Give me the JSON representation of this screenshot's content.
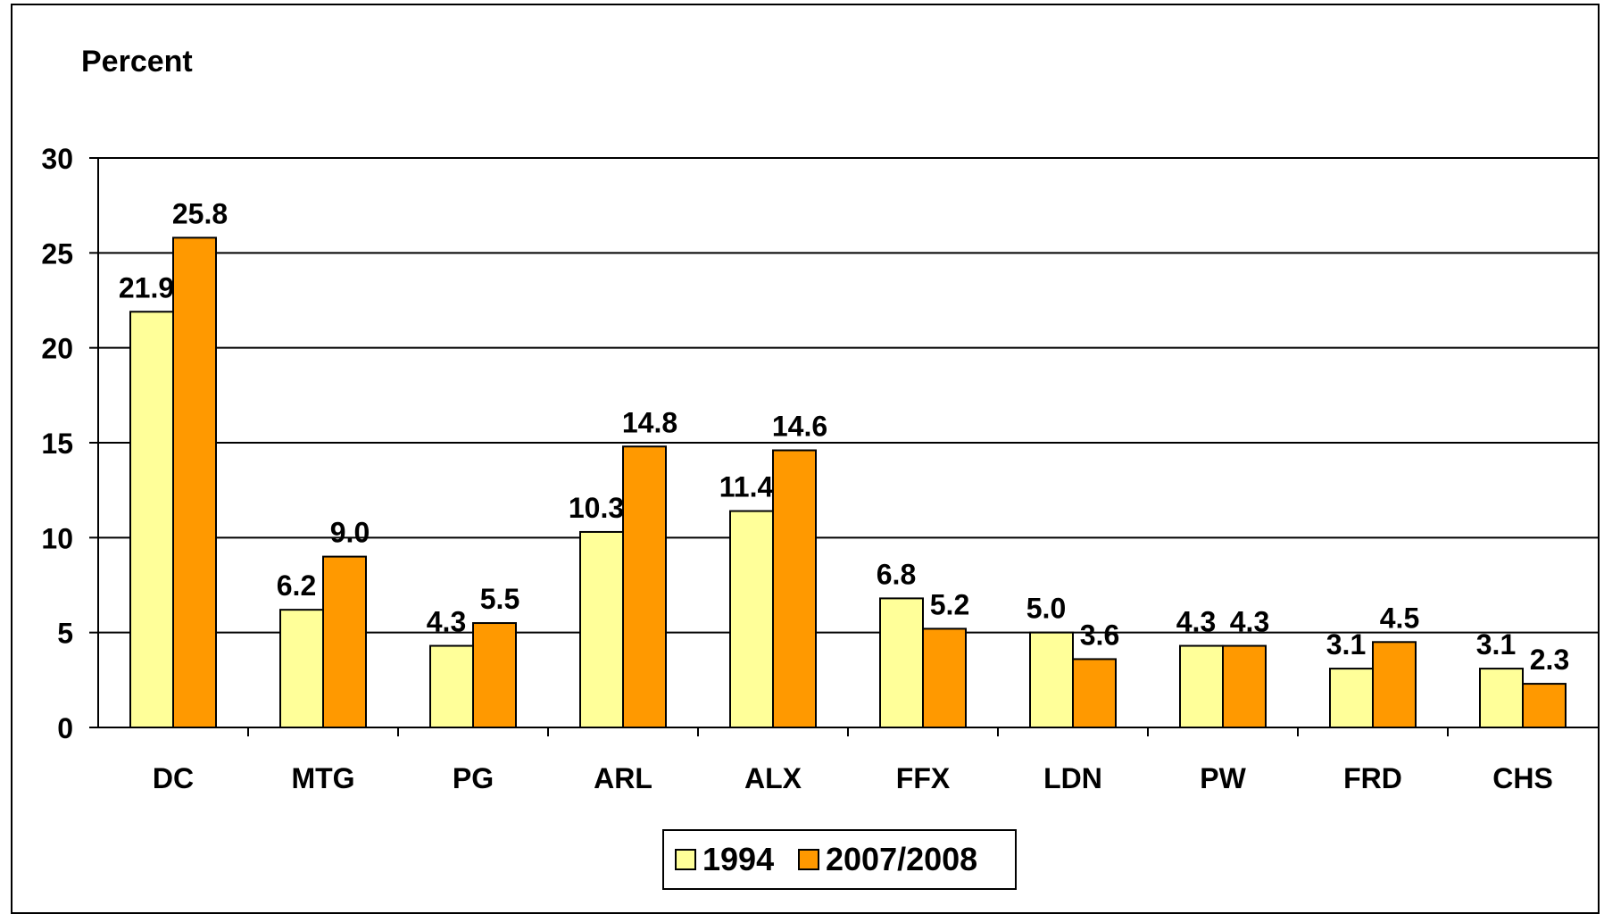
{
  "chart_data": {
    "type": "bar",
    "title": "",
    "ylabel": "Percent",
    "xlabel": "",
    "categories": [
      "DC",
      "MTG",
      "PG",
      "ARL",
      "ALX",
      "FFX",
      "LDN",
      "PW",
      "FRD",
      "CHS"
    ],
    "series": [
      {
        "name": "1994",
        "color": "#FFFF99",
        "values": [
          21.9,
          6.2,
          4.3,
          10.3,
          11.4,
          6.8,
          5.0,
          4.3,
          3.1,
          3.1
        ],
        "labels": [
          "21.9",
          "6.2",
          "4.3",
          "10.3",
          "11.4",
          "6.8",
          "5.0",
          "4.3",
          "3.1",
          "3.1"
        ]
      },
      {
        "name": "2007/2008",
        "color": "#FF9900",
        "values": [
          25.8,
          9.0,
          5.5,
          14.8,
          14.6,
          5.2,
          3.6,
          4.3,
          4.5,
          2.3
        ],
        "labels": [
          "25.8",
          "9.0",
          "5.5",
          "14.8",
          "14.6",
          "5.2",
          "3.6",
          "4.3",
          "4.5",
          "2.3"
        ]
      }
    ],
    "ylim": [
      0,
      30
    ],
    "yticks": [
      "0",
      "5",
      "10",
      "15",
      "20",
      "25",
      "30"
    ],
    "grid": true,
    "legend_position": "bottom"
  }
}
